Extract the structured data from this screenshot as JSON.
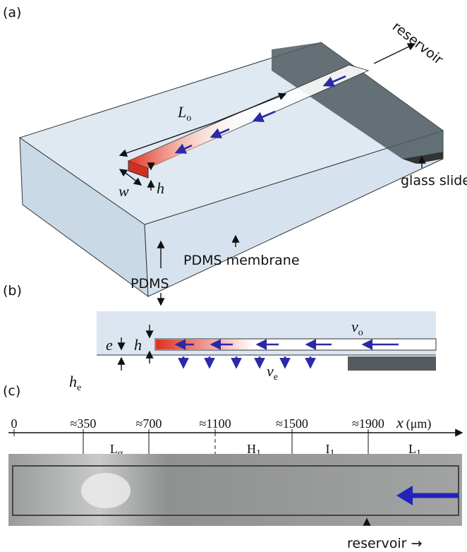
{
  "panel_a": {
    "label": "(a)",
    "reservoir": "reservoir",
    "length": {
      "main": "L",
      "sub": "o"
    },
    "width": "w",
    "height": "h",
    "glass_slide": "glass slide",
    "membrane": "PDMS membrane",
    "pdms": "PDMS"
  },
  "panel_b": {
    "label": "(b)",
    "e": "e",
    "h": "h",
    "v_o": {
      "main": "v",
      "sub": "o"
    },
    "v_e": {
      "main": "v",
      "sub": "e"
    },
    "h_e": {
      "main": "h",
      "sub": "e"
    }
  },
  "panel_c": {
    "label": "(c)",
    "axis_ticks": [
      "0",
      "≈350",
      "≈700",
      "≈1100",
      "≈1500",
      "≈1900"
    ],
    "axis_label": {
      "main": "x",
      "unit": "(μm)"
    },
    "phases": [
      {
        "main": "L",
        "sub": "α"
      },
      {
        "main": "H",
        "sub": "1"
      },
      {
        "main": "I",
        "sub": "1"
      },
      {
        "main": "L",
        "sub": "1"
      }
    ],
    "reservoir": "reservoir →"
  }
}
